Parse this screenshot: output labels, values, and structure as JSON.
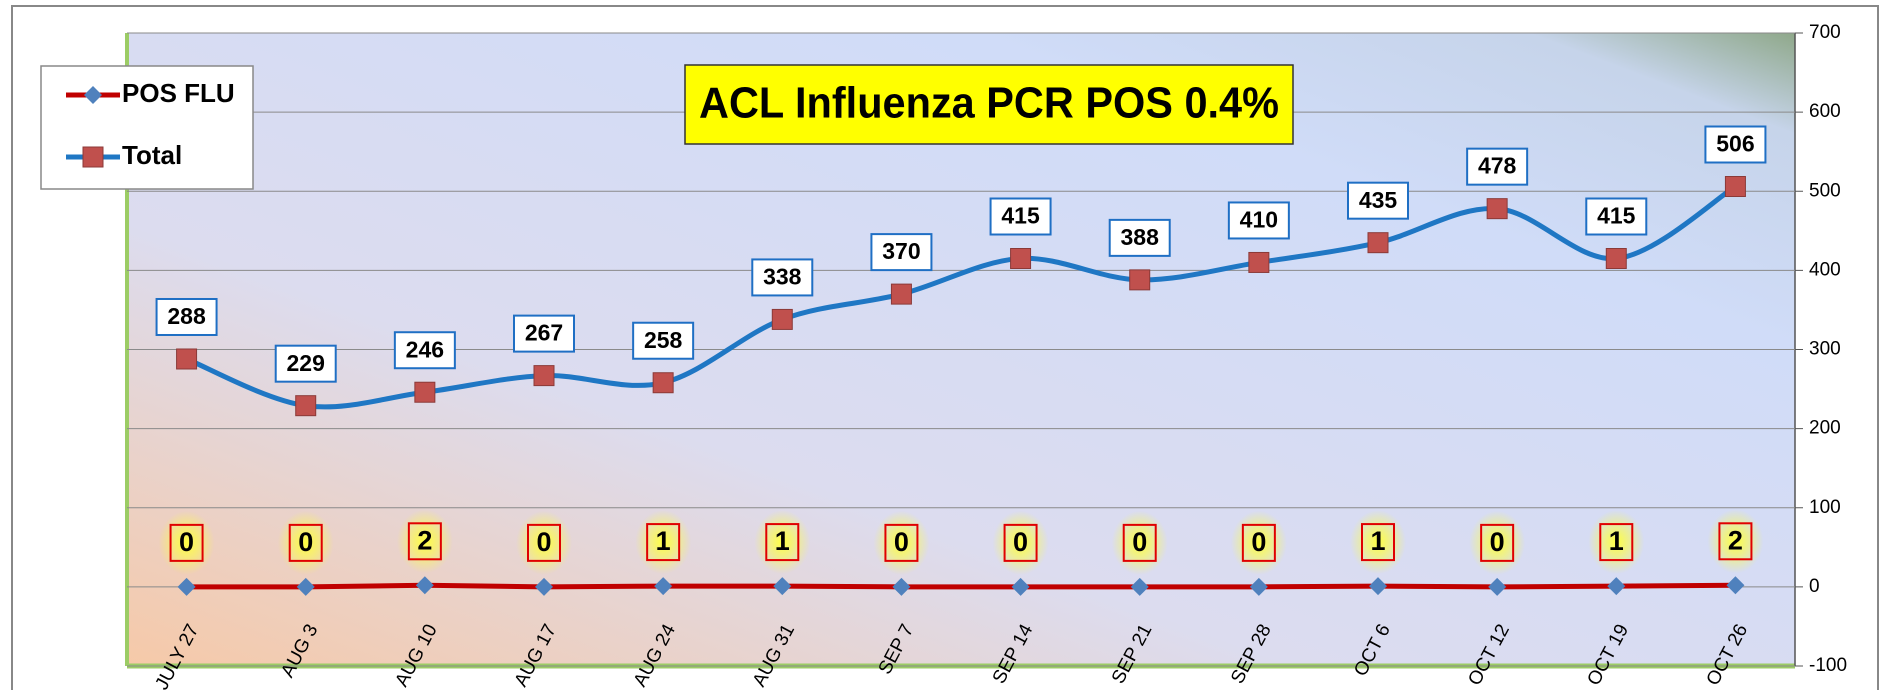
{
  "chart_data": {
    "type": "line",
    "title": "ACL Influenza PCR POS 0.4%",
    "categories": [
      "JULY 27",
      "AUG 3",
      "AUG 10",
      "AUG 17",
      "AUG 24",
      "AUG 31",
      "SEP 7",
      "SEP 14",
      "SEP 21",
      "SEP 28",
      "OCT 6",
      "OCT 12",
      "OCT 19",
      "OCT 26"
    ],
    "series": [
      {
        "name": "POS FLU",
        "color": "#c00000",
        "marker": "diamond",
        "marker_color": "#4f81bd",
        "label_border": "#e00000",
        "values": [
          0,
          0,
          2,
          0,
          1,
          1,
          0,
          0,
          0,
          0,
          1,
          0,
          1,
          2
        ]
      },
      {
        "name": "Total",
        "color": "#1f77c4",
        "marker": "square",
        "marker_color": "#c0504d",
        "label_border": "#1f6fc4",
        "smooth": true,
        "values": [
          288,
          229,
          246,
          267,
          258,
          338,
          370,
          415,
          388,
          410,
          435,
          478,
          415,
          506
        ]
      }
    ],
    "ylim": [
      -100,
      700
    ],
    "yticks": [
      -100,
      0,
      100,
      200,
      300,
      400,
      500,
      600,
      700
    ],
    "y_axis_side": "right",
    "grid": true,
    "legend": "top-left"
  }
}
